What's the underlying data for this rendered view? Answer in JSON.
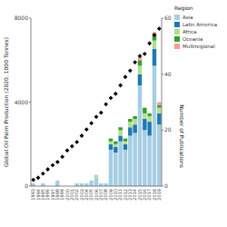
{
  "chart_data": {
    "type": "bar",
    "stacked": true,
    "categories": [
      "1993",
      "1994",
      "1995",
      "1996",
      "1997",
      "1998",
      "1999",
      "2000",
      "2001",
      "2002",
      "2003",
      "2004",
      "2005",
      "2006",
      "2007",
      "2008",
      "2009",
      "2010",
      "2011",
      "2012",
      "2013",
      "2014",
      "2015",
      "2016",
      "2017",
      "2018",
      "2019"
    ],
    "ylabel": "Global Oil Palm Production (2020, 1000 Tonnes)",
    "y2label": "Number of Publications",
    "ylim": [
      0,
      8000
    ],
    "yticks": [
      0,
      4000,
      8000
    ],
    "y2lim": [
      0,
      60
    ],
    "y2ticks": [
      0,
      20,
      40,
      60
    ],
    "legend": "upper right",
    "legend_title": "Region",
    "grid": false,
    "series": [
      {
        "name": "Asia",
        "type": "bar",
        "axis": "y2",
        "color": "#a6cee3",
        "values": [
          1,
          0,
          1,
          0,
          0,
          2,
          0,
          0,
          0,
          1,
          1,
          1,
          2,
          3,
          1,
          1,
          13,
          12,
          16,
          13,
          18,
          19,
          36,
          20,
          18,
          43,
          22
        ]
      },
      {
        "name": "Latin America",
        "type": "bar",
        "axis": "y2",
        "color": "#1f78b4",
        "values": [
          0,
          0,
          0,
          0,
          0,
          0,
          0,
          0,
          0,
          0,
          0,
          0,
          0,
          0,
          0,
          0,
          2,
          2,
          2,
          2,
          3,
          3,
          4,
          4,
          5,
          6,
          4
        ]
      },
      {
        "name": "Africa",
        "type": "bar",
        "axis": "y2",
        "color": "#b2df8a",
        "values": [
          0,
          0,
          0,
          0,
          0,
          0,
          0,
          0,
          0,
          0,
          0,
          0,
          0,
          1,
          0,
          0,
          1,
          1,
          2,
          1,
          2,
          2,
          3,
          2,
          2,
          3,
          2
        ]
      },
      {
        "name": "Oceania",
        "type": "bar",
        "axis": "y2",
        "color": "#33a02c",
        "values": [
          0,
          0,
          0,
          0,
          0,
          0,
          0,
          0,
          0,
          0,
          0,
          0,
          0,
          0,
          0,
          0,
          1,
          1,
          1,
          1,
          1,
          1,
          2,
          2,
          1,
          2,
          1
        ]
      },
      {
        "name": "Multiregional",
        "type": "bar",
        "axis": "y2",
        "color": "#fb9a99",
        "values": [
          0,
          0,
          0,
          0,
          0,
          0,
          0,
          0,
          0,
          0,
          0,
          0,
          0,
          0,
          0,
          0,
          0,
          0,
          0,
          0,
          0,
          0,
          1,
          0,
          0,
          1,
          1
        ]
      },
      {
        "type": "line",
        "axis": "y",
        "color": "#000000",
        "marker": "diamond",
        "line_style": "none",
        "values": [
          300,
          400,
          600,
          800,
          1000,
          1150,
          1400,
          1700,
          1900,
          2100,
          2400,
          2700,
          3000,
          3300,
          3500,
          3900,
          4200,
          4400,
          4800,
          5200,
          5500,
          5900,
          6200,
          6300,
          6800,
          7200,
          7500
        ]
      }
    ]
  }
}
